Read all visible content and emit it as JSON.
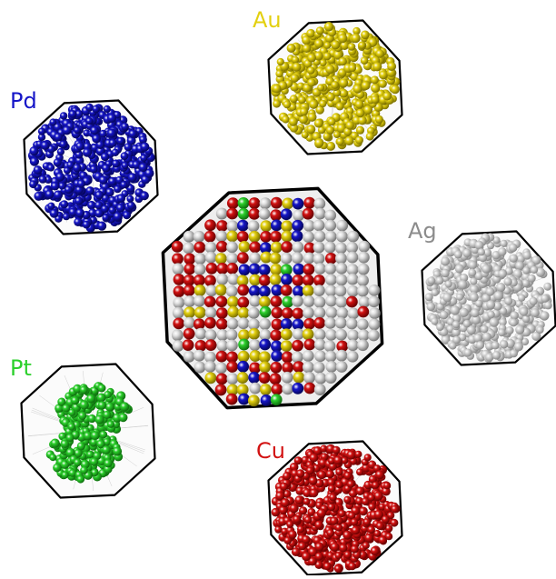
{
  "panels": [
    {
      "id": "au",
      "label": "Au",
      "color": "#e3d00f",
      "shade": "#7d7200"
    },
    {
      "id": "pd",
      "label": "Pd",
      "color": "#1616c8",
      "shade": "#05055e"
    },
    {
      "id": "ag",
      "label": "Ag",
      "color": "#d6d6d6",
      "shade": "#8a8a8a"
    },
    {
      "id": "pt",
      "label": "Pt",
      "color": "#2cd02c",
      "shade": "#0e6e0e"
    },
    {
      "id": "cu",
      "label": "Cu",
      "color": "#d21212",
      "shade": "#6a0000"
    }
  ],
  "label_colors": {
    "au": "#e3d00f",
    "pd": "#1616c8",
    "ag": "#8c8c8c",
    "pt": "#2cd02c",
    "cu": "#d21212"
  },
  "center_mix": [
    "#e0e0e0",
    "#d21212",
    "#e3d00f",
    "#1616c8",
    "#2cd02c"
  ]
}
